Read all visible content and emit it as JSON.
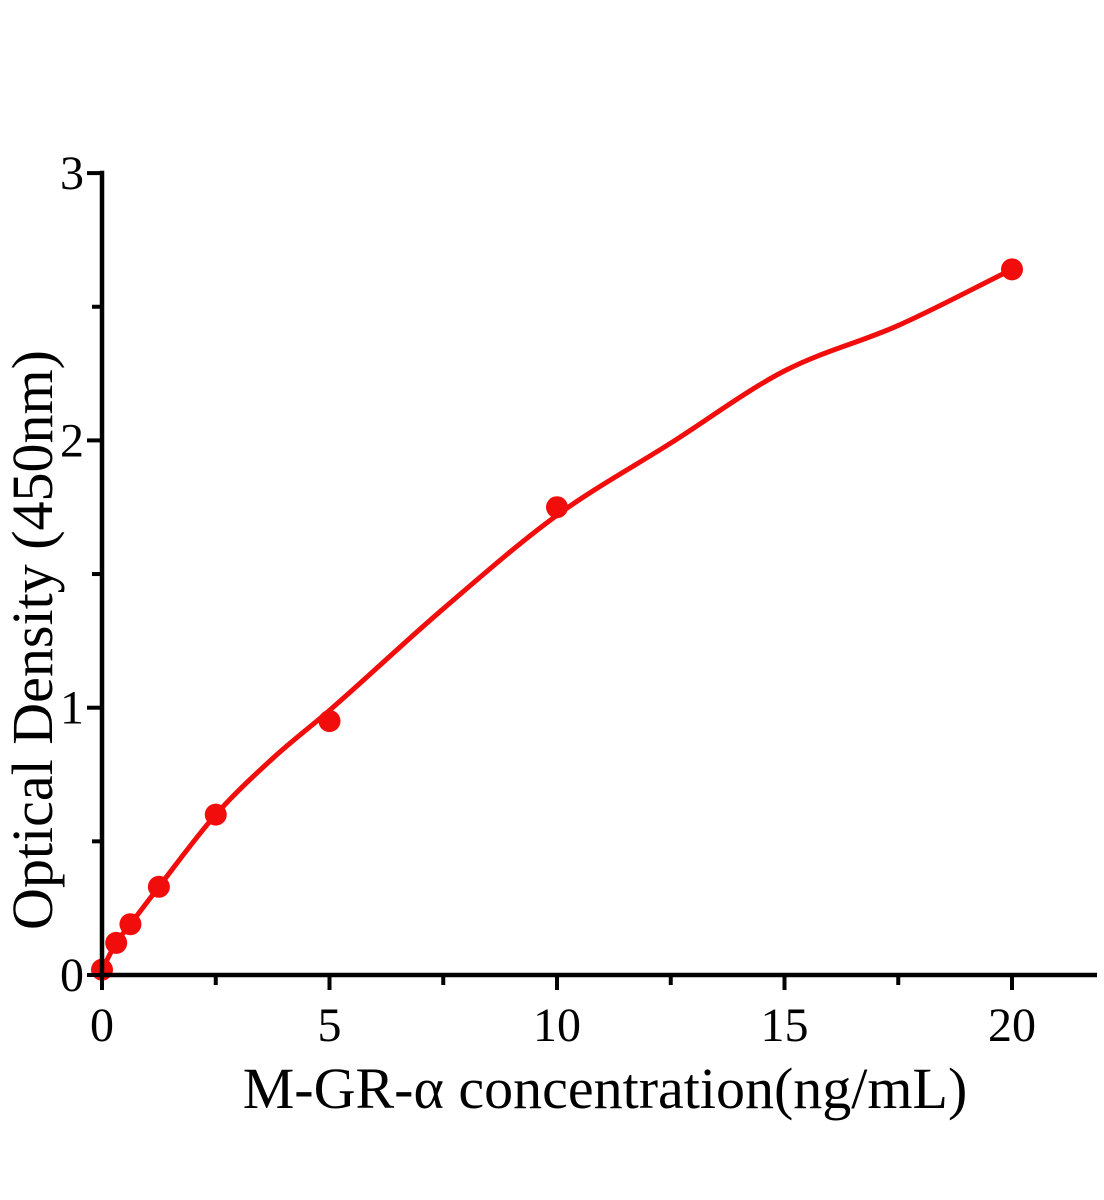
{
  "chart_data": {
    "type": "scatter",
    "title": "",
    "xlabel": "M-GR-α concentration(ng/mL)",
    "ylabel": "Optical Density（450nm）",
    "xlim": [
      0,
      21.9
    ],
    "ylim": [
      0,
      3
    ],
    "grid": false,
    "legend": false,
    "axis_color": "#000000",
    "background_color": "#ffffff",
    "accent_color": "#f20d0d",
    "x_major_ticks": [
      0,
      5,
      10,
      15,
      20
    ],
    "x_tick_labels": [
      "0",
      "5",
      "10",
      "15",
      "20"
    ],
    "x_minor_ticks": [
      2.5,
      7.5,
      12.5,
      17.5
    ],
    "y_major_ticks": [
      0,
      1,
      2,
      3
    ],
    "y_tick_labels": [
      "0",
      "1",
      "2",
      "3"
    ],
    "y_minor_ticks": [
      0.5,
      1.5,
      2.5
    ],
    "series": [
      {
        "name": "standards-scatter",
        "type": "scatter",
        "marker": "circle",
        "color": "#f20d0d",
        "points": [
          [
            0,
            0.02
          ],
          [
            0.312,
            0.12
          ],
          [
            0.625,
            0.19
          ],
          [
            1.25,
            0.33
          ],
          [
            2.5,
            0.6
          ],
          [
            5,
            0.95
          ],
          [
            10,
            1.75
          ],
          [
            20,
            2.64
          ]
        ]
      },
      {
        "name": "fit-curve",
        "type": "line",
        "color": "#f20d0d",
        "points": [
          [
            0,
            0.02
          ],
          [
            0.312,
            0.12
          ],
          [
            0.625,
            0.19
          ],
          [
            1.25,
            0.33
          ],
          [
            2.5,
            0.6
          ],
          [
            3.75,
            0.81
          ],
          [
            5,
            0.99
          ],
          [
            7.5,
            1.37
          ],
          [
            10,
            1.72
          ],
          [
            12.5,
            1.99
          ],
          [
            15,
            2.26
          ],
          [
            17.5,
            2.43
          ],
          [
            20,
            2.64
          ]
        ]
      }
    ]
  }
}
